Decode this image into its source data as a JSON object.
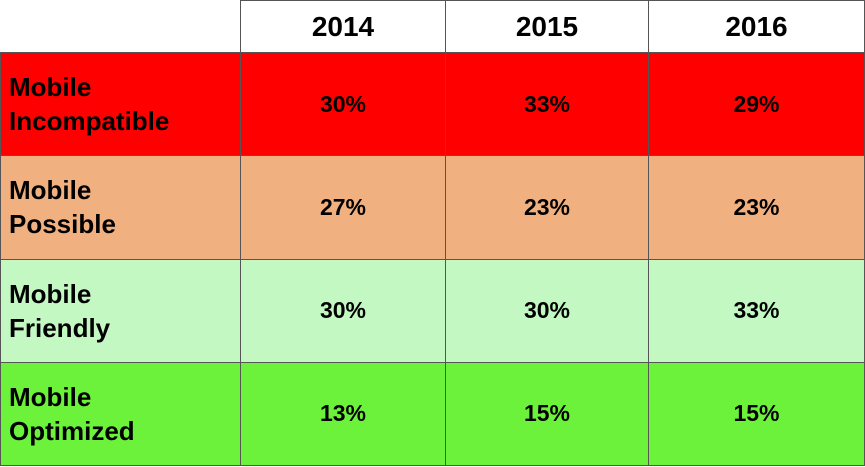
{
  "table": {
    "header": [
      "2014",
      "2015",
      "2016"
    ],
    "rows": [
      {
        "label": [
          "Mobile",
          "Incompatible"
        ],
        "color": "#ff0000",
        "cells": [
          "30%",
          "33%",
          "29%"
        ]
      },
      {
        "label": [
          "Mobile",
          "Possible"
        ],
        "color": "#f0b07f",
        "cells": [
          "27%",
          "23%",
          "23%"
        ]
      },
      {
        "label": [
          "Mobile",
          "Friendly"
        ],
        "color": "#c3f8c3",
        "cells": [
          "30%",
          "30%",
          "33%"
        ]
      },
      {
        "label": [
          "Mobile",
          "Optimized"
        ],
        "color": "#6cf23a",
        "cells": [
          "13%",
          "15%",
          "15%"
        ]
      }
    ]
  }
}
